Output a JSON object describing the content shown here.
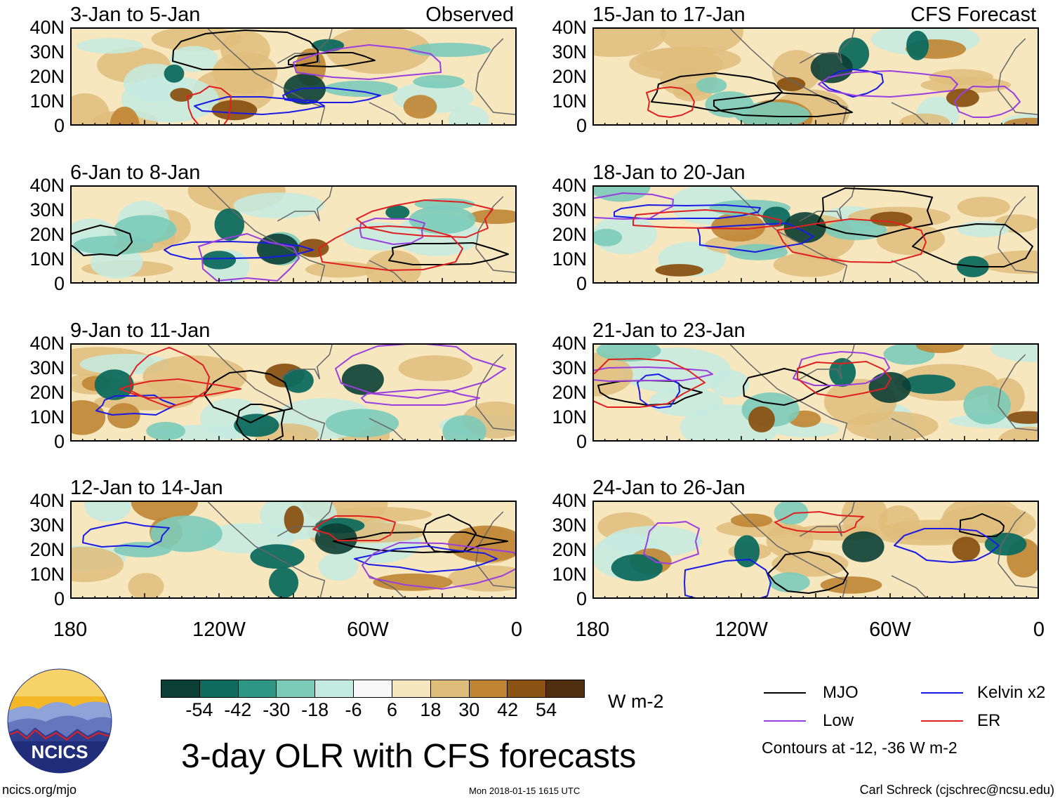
{
  "map": {
    "panels": [
      {
        "id": "p1",
        "title": "3-Jan to 5-Jan",
        "tag": "Observed"
      },
      {
        "id": "p2",
        "title": "6-Jan to 8-Jan",
        "tag": ""
      },
      {
        "id": "p3",
        "title": "9-Jan to 11-Jan",
        "tag": ""
      },
      {
        "id": "p4",
        "title": "12-Jan to 14-Jan",
        "tag": ""
      },
      {
        "id": "p5",
        "title": "15-Jan to 17-Jan",
        "tag": "CFS Forecast"
      },
      {
        "id": "p6",
        "title": "18-Jan to 20-Jan",
        "tag": ""
      },
      {
        "id": "p7",
        "title": "21-Jan to 23-Jan",
        "tag": ""
      },
      {
        "id": "p8",
        "title": "24-Jan to 26-Jan",
        "tag": ""
      }
    ],
    "y_ticks": [
      "40N",
      "30N",
      "20N",
      "10N",
      "0"
    ],
    "x_ticks": [
      "180",
      "120W",
      "60W",
      "0"
    ]
  },
  "colorbar": {
    "colors": [
      "#0b3f35",
      "#0e6b5e",
      "#2e9684",
      "#7ccbb9",
      "#c4ebe2",
      "#f8f8f8",
      "#f6e7bf",
      "#dfbd7b",
      "#bf8533",
      "#8a5314",
      "#4f2f0f"
    ],
    "labels": [
      "-54",
      "-42",
      "-30",
      "-18",
      "-6",
      "6",
      "18",
      "30",
      "42",
      "54"
    ],
    "units": "W m-2"
  },
  "legend": {
    "items": [
      {
        "label": "MJO",
        "color": "#000000"
      },
      {
        "label": "Kelvin x2",
        "color": "#1a1ae6"
      },
      {
        "label": "Low",
        "color": "#9a3ee0"
      },
      {
        "label": "ER",
        "color": "#e02020"
      }
    ],
    "note": "Contours at -12, -36 W m-2"
  },
  "footer": {
    "logo_text": "NCICS",
    "main_title": "3-day OLR with CFS forecasts",
    "url": "ncics.org/mjo",
    "timestamp": "Mon 2018-01-15 1615 UTC",
    "credit": "Carl Schreck (cjschrec@ncsu.edu)"
  }
}
